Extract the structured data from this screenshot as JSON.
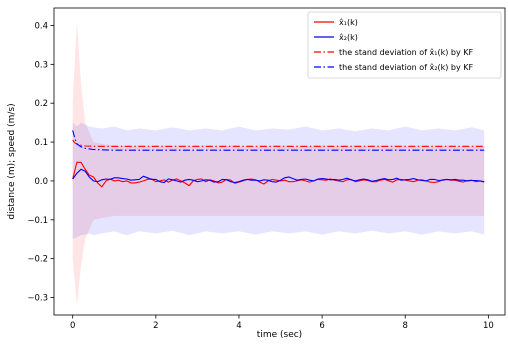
{
  "chart_data": {
    "type": "line",
    "xlabel": "time (sec)",
    "ylabel": "distance (m); speed (m/s)",
    "xlim": [
      -0.45,
      10.4
    ],
    "ylim": [
      -0.345,
      0.445
    ],
    "xticks": [
      0,
      2,
      4,
      6,
      8,
      10
    ],
    "yticks": [
      -0.3,
      -0.2,
      -0.1,
      0.0,
      0.1,
      0.2,
      0.3,
      0.4
    ],
    "xtick_labels": [
      "0",
      "2",
      "4",
      "6",
      "8",
      "10"
    ],
    "ytick_labels": [
      "−0.3",
      "−0.2",
      "−0.1",
      "0.0",
      "0.1",
      "0.2",
      "0.3",
      "0.4"
    ],
    "grid": false,
    "legend_position": "top-right",
    "series": [
      {
        "name": "x̂₁(k)",
        "color": "#ff0000",
        "style": "solid",
        "x": [
          0.0,
          0.1,
          0.2,
          0.3,
          0.4,
          0.5,
          0.6,
          0.7,
          0.8,
          0.9,
          1.0,
          1.1,
          1.2,
          1.3,
          1.4,
          1.5,
          1.6,
          1.7,
          1.8,
          1.9,
          2.0,
          2.1,
          2.2,
          2.3,
          2.4,
          2.5,
          2.6,
          2.7,
          2.8,
          2.9,
          3.0,
          3.1,
          3.2,
          3.3,
          3.4,
          3.5,
          3.6,
          3.7,
          3.8,
          3.9,
          4.0,
          4.1,
          4.2,
          4.3,
          4.4,
          4.5,
          4.6,
          4.7,
          4.8,
          4.9,
          5.0,
          5.1,
          5.2,
          5.3,
          5.4,
          5.5,
          5.6,
          5.7,
          5.8,
          5.9,
          6.0,
          6.1,
          6.2,
          6.3,
          6.4,
          6.5,
          6.6,
          6.7,
          6.8,
          6.9,
          7.0,
          7.1,
          7.2,
          7.3,
          7.4,
          7.5,
          7.6,
          7.7,
          7.8,
          7.9,
          8.0,
          8.1,
          8.2,
          8.3,
          8.4,
          8.5,
          8.6,
          8.7,
          8.8,
          8.9,
          9.0,
          9.1,
          9.2,
          9.3,
          9.4,
          9.5,
          9.6,
          9.7,
          9.8,
          9.9
        ],
        "y": [
          0.005,
          0.048,
          0.048,
          0.03,
          0.015,
          0.01,
          -0.005,
          -0.015,
          0.0,
          0.005,
          0.0,
          0.002,
          -0.002,
          0.0,
          -0.005,
          -0.005,
          -0.003,
          0.0,
          0.004,
          0.005,
          -0.002,
          0.0,
          0.003,
          -0.003,
          0.002,
          0.005,
          0.0,
          -0.005,
          -0.012,
          0.0,
          0.004,
          0.005,
          -0.002,
          0.003,
          0.0,
          -0.005,
          -0.003,
          0.004,
          0.002,
          -0.006,
          -0.003,
          0.0,
          0.004,
          0.005,
          0.003,
          -0.003,
          -0.008,
          0.0,
          0.004,
          0.002,
          0.0,
          0.002,
          -0.002,
          -0.002,
          0.0,
          0.003,
          0.0,
          -0.003,
          0.0,
          0.004,
          0.003,
          0.002,
          0.005,
          0.002,
          0.0,
          -0.002,
          0.003,
          0.004,
          -0.002,
          0.0,
          0.003,
          0.001,
          -0.002,
          -0.002,
          0.002,
          0.004,
          0.0,
          -0.003,
          0.003,
          0.004,
          0.002,
          0.0,
          -0.002,
          0.002,
          0.003,
          0.0,
          -0.003,
          -0.004,
          -0.002,
          0.003,
          0.004,
          0.002,
          0.002,
          -0.001,
          -0.003,
          0.001,
          0.002,
          -0.002,
          0.0,
          -0.003
        ]
      },
      {
        "name": "x̂₂(k)",
        "color": "#0000ff",
        "style": "solid",
        "x": [
          0.0,
          0.1,
          0.2,
          0.3,
          0.4,
          0.5,
          0.6,
          0.7,
          0.8,
          0.9,
          1.0,
          1.1,
          1.2,
          1.3,
          1.4,
          1.5,
          1.6,
          1.7,
          1.8,
          1.9,
          2.0,
          2.1,
          2.2,
          2.3,
          2.4,
          2.5,
          2.6,
          2.7,
          2.8,
          2.9,
          3.0,
          3.1,
          3.2,
          3.3,
          3.4,
          3.5,
          3.6,
          3.7,
          3.8,
          3.9,
          4.0,
          4.1,
          4.2,
          4.3,
          4.4,
          4.5,
          4.6,
          4.7,
          4.8,
          4.9,
          5.0,
          5.1,
          5.2,
          5.3,
          5.4,
          5.5,
          5.6,
          5.7,
          5.8,
          5.9,
          6.0,
          6.1,
          6.2,
          6.3,
          6.4,
          6.5,
          6.6,
          6.7,
          6.8,
          6.9,
          7.0,
          7.1,
          7.2,
          7.3,
          7.4,
          7.5,
          7.6,
          7.7,
          7.8,
          7.9,
          8.0,
          8.1,
          8.2,
          8.3,
          8.4,
          8.5,
          8.6,
          8.7,
          8.8,
          8.9,
          9.0,
          9.1,
          9.2,
          9.3,
          9.4,
          9.5,
          9.6,
          9.7,
          9.8,
          9.9
        ],
        "y": [
          0.005,
          0.02,
          0.03,
          0.025,
          0.01,
          0.0,
          -0.002,
          0.003,
          0.005,
          0.004,
          0.008,
          0.008,
          0.006,
          0.005,
          0.002,
          0.003,
          0.004,
          0.012,
          0.008,
          0.004,
          0.004,
          -0.002,
          -0.004,
          0.005,
          0.003,
          0.0,
          -0.003,
          0.002,
          0.004,
          0.002,
          -0.002,
          0.0,
          0.003,
          0.002,
          -0.003,
          -0.002,
          0.004,
          0.003,
          -0.002,
          -0.004,
          -0.002,
          0.002,
          0.004,
          0.002,
          0.002,
          0.0,
          0.003,
          0.002,
          -0.002,
          -0.003,
          0.002,
          0.008,
          0.01,
          0.006,
          0.002,
          0.004,
          0.005,
          0.002,
          0.0,
          0.005,
          0.006,
          0.005,
          0.003,
          0.004,
          0.002,
          0.004,
          0.007,
          0.003,
          0.0,
          0.003,
          0.005,
          0.003,
          -0.001,
          0.001,
          0.004,
          0.006,
          0.003,
          0.004,
          0.007,
          0.002,
          0.003,
          0.004,
          0.006,
          0.003,
          0.001,
          0.0,
          0.004,
          0.004,
          0.001,
          0.002,
          0.004,
          0.003,
          0.004,
          0.002,
          0.002,
          0.0,
          0.001,
          0.001,
          0.0,
          -0.002
        ]
      },
      {
        "name": "the stand deviation of x̂₁(k) by KF",
        "color": "#ff0000",
        "style": "dashdot",
        "x": [
          0.0,
          0.05,
          0.1,
          0.2,
          0.3,
          0.5,
          1.0,
          2.0,
          4.0,
          6.0,
          8.0,
          9.9
        ],
        "y": [
          0.105,
          0.098,
          0.095,
          0.092,
          0.09,
          0.089,
          0.089,
          0.089,
          0.089,
          0.089,
          0.089,
          0.089
        ]
      },
      {
        "name": "the stand deviation of x̂₂(k) by KF",
        "color": "#0000ff",
        "style": "dashdot",
        "x": [
          0.0,
          0.05,
          0.1,
          0.2,
          0.3,
          0.5,
          1.0,
          2.0,
          4.0,
          6.0,
          8.0,
          9.9
        ],
        "y": [
          0.13,
          0.11,
          0.095,
          0.088,
          0.084,
          0.081,
          0.079,
          0.079,
          0.079,
          0.079,
          0.079,
          0.079
        ]
      }
    ],
    "bands": [
      {
        "color": "#ff0000",
        "opacity": 0.1,
        "x": [
          0.0,
          0.1,
          0.2,
          0.3,
          0.5,
          1.0,
          2.0,
          4.0,
          6.0,
          8.0,
          9.9
        ],
        "upper": [
          0.2,
          0.41,
          0.25,
          0.15,
          0.1,
          0.09,
          0.09,
          0.09,
          0.09,
          0.09,
          0.09
        ],
        "lower": [
          -0.2,
          -0.32,
          -0.22,
          -0.15,
          -0.1,
          -0.09,
          -0.09,
          -0.09,
          -0.09,
          -0.09,
          -0.09
        ]
      },
      {
        "color": "#0000ff",
        "opacity": 0.1,
        "x": [
          0.0,
          0.1,
          0.2,
          0.3,
          0.4,
          0.5,
          0.7,
          1.0,
          1.3,
          1.6,
          2.0,
          2.4,
          2.8,
          3.2,
          3.6,
          4.0,
          4.4,
          4.8,
          5.2,
          5.6,
          6.0,
          6.4,
          6.8,
          7.2,
          7.6,
          8.0,
          8.4,
          8.8,
          9.2,
          9.6,
          9.9
        ],
        "upper": [
          0.15,
          0.14,
          0.15,
          0.145,
          0.14,
          0.138,
          0.135,
          0.14,
          0.13,
          0.135,
          0.13,
          0.138,
          0.13,
          0.135,
          0.13,
          0.14,
          0.13,
          0.135,
          0.132,
          0.14,
          0.13,
          0.135,
          0.128,
          0.135,
          0.13,
          0.14,
          0.13,
          0.135,
          0.13,
          0.138,
          0.13
        ],
        "lower": [
          -0.15,
          -0.145,
          -0.14,
          -0.138,
          -0.135,
          -0.14,
          -0.135,
          -0.13,
          -0.14,
          -0.13,
          -0.135,
          -0.128,
          -0.14,
          -0.13,
          -0.135,
          -0.13,
          -0.138,
          -0.13,
          -0.135,
          -0.13,
          -0.138,
          -0.13,
          -0.135,
          -0.128,
          -0.135,
          -0.13,
          -0.138,
          -0.13,
          -0.135,
          -0.13,
          -0.138
        ]
      }
    ]
  }
}
